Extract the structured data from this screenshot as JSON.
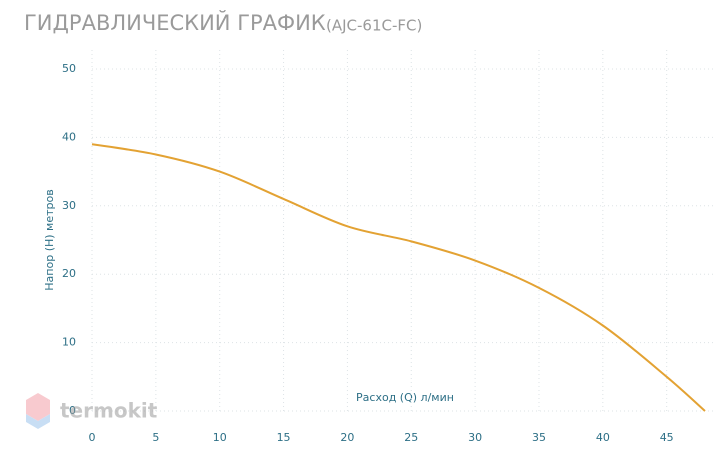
{
  "chart_data": {
    "type": "line",
    "title": "ГИДРАВЛИЧЕСКИЙ ГРАФИК",
    "model": "(AJC-61C-FC)",
    "x_label": "Расход (Q) л/мин",
    "y_label": "Напор (H) метров",
    "watermark": "termokit",
    "x": [
      0,
      5,
      10,
      15,
      20,
      25,
      30,
      35,
      40,
      45,
      48
    ],
    "values": [
      39,
      37.5,
      35,
      31,
      27,
      24.8,
      22,
      18,
      12.5,
      5,
      0
    ],
    "color": "#e3a233",
    "xlim": [
      0,
      48
    ],
    "xticks": [
      0,
      5,
      10,
      15,
      20,
      25,
      30,
      35,
      40,
      45
    ],
    "ylim": [
      0,
      50
    ],
    "yticks": [
      0,
      10,
      20,
      30,
      40,
      50
    ],
    "grid": true
  }
}
